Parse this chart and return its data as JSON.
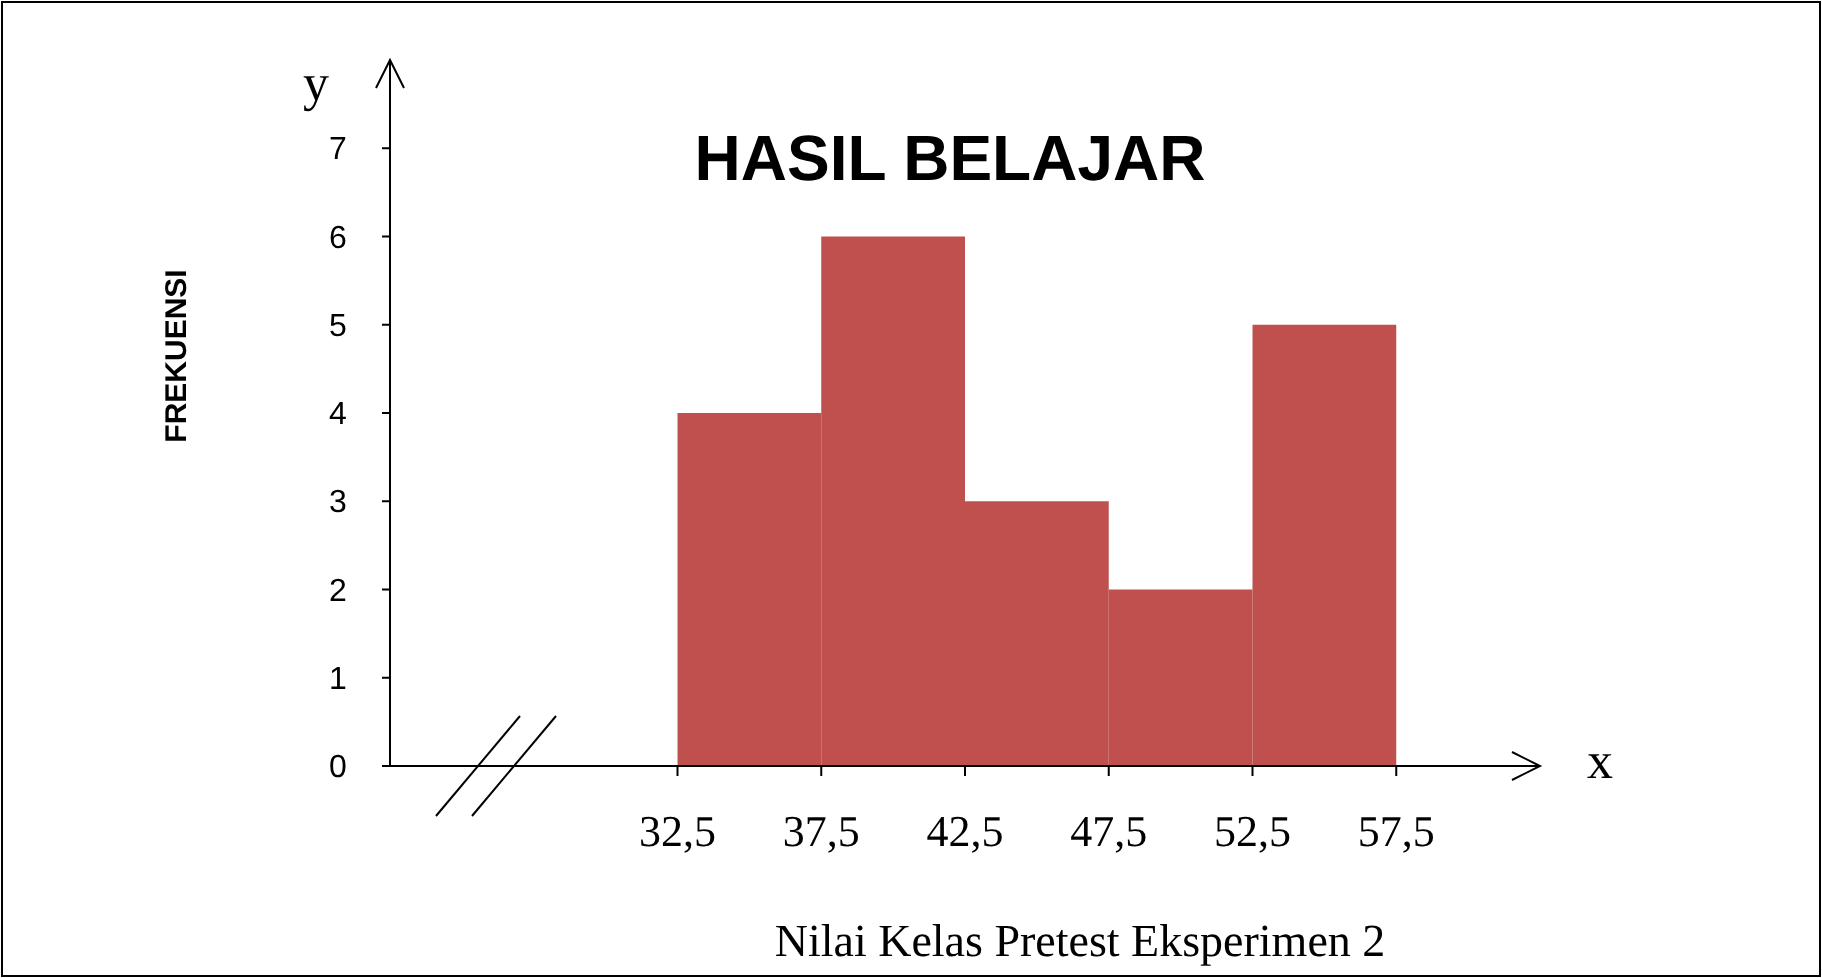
{
  "chart_data": {
    "type": "histogram",
    "title": "HASIL BELAJAR",
    "xlabel": "Nilai Kelas Pretest Eksperimen 2",
    "ylabel": "FREKUENSI",
    "bins": [
      32.5,
      37.5,
      42.5,
      47.5,
      52.5,
      57.5
    ],
    "values": [
      4,
      6,
      3,
      2,
      5
    ],
    "color": "#c0504d",
    "xlim": [
      22.5,
      62.5
    ],
    "xticks": [
      {
        "value": 32.5,
        "label": "32,5"
      },
      {
        "value": 37.5,
        "label": "37,5"
      },
      {
        "value": 42.5,
        "label": "42,5"
      },
      {
        "value": 47.5,
        "label": "47,5"
      },
      {
        "value": 52.5,
        "label": "52,5"
      },
      {
        "value": 57.5,
        "label": "57,5"
      }
    ],
    "ylim": [
      0,
      8
    ],
    "yticks": [
      0,
      1,
      2,
      3,
      4,
      5,
      6,
      7
    ],
    "annotations": [
      "x",
      "y"
    ]
  }
}
